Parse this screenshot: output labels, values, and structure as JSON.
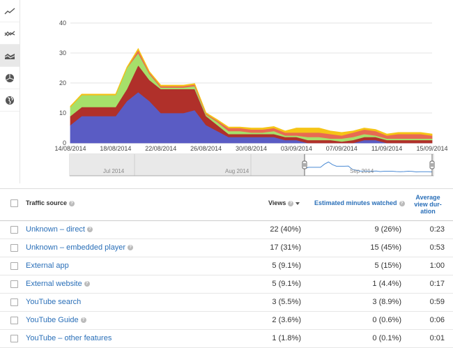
{
  "toolbar": {
    "buttons": [
      {
        "icon": "line-chart-icon"
      },
      {
        "icon": "multi-line-chart-icon"
      },
      {
        "icon": "stacked-area-chart-icon"
      },
      {
        "icon": "pie-chart-icon"
      },
      {
        "icon": "globe-map-icon"
      }
    ],
    "active_index": 2
  },
  "chart_data": {
    "type": "area",
    "stacked": true,
    "x": [
      "14/08/2014",
      "15/08/2014",
      "16/08/2014",
      "17/08/2014",
      "18/08/2014",
      "19/08/2014",
      "20/08/2014",
      "21/08/2014",
      "22/08/2014",
      "23/08/2014",
      "24/08/2014",
      "25/08/2014",
      "26/08/2014",
      "27/08/2014",
      "28/08/2014",
      "29/08/2014",
      "30/08/2014",
      "31/08/2014",
      "01/09/2014",
      "02/09/2014",
      "03/09/2014",
      "04/09/2014",
      "05/09/2014",
      "06/09/2014",
      "07/09/2014",
      "08/09/2014",
      "09/09/2014",
      "10/09/2014",
      "11/09/2014",
      "12/09/2014",
      "13/09/2014",
      "14/09/2014",
      "15/09/2014"
    ],
    "x_tick_labels": [
      "14/08/2014",
      "18/08/2014",
      "22/08/2014",
      "26/08/2014",
      "30/08/2014",
      "03/09/2014",
      "07/09/2014",
      "11/09/2014",
      "15/09/2014"
    ],
    "y_tick_labels": [
      "0",
      "10",
      "20",
      "30",
      "40"
    ],
    "ylim": [
      0,
      40
    ],
    "colors": [
      "#5a5cc4",
      "#b0302a",
      "#a6e06a",
      "#e86a52",
      "#f5c416"
    ],
    "series": [
      {
        "values": [
          6,
          9,
          9,
          9,
          9,
          14,
          17,
          14,
          10,
          10,
          10,
          11,
          6,
          4,
          2,
          2,
          2,
          2,
          2,
          1,
          1,
          0,
          0,
          0,
          0,
          0,
          1,
          1,
          0,
          0,
          0,
          0,
          0
        ]
      },
      {
        "values": [
          3,
          3,
          3,
          3,
          3,
          4,
          9,
          7,
          8,
          8,
          8,
          7,
          3,
          2,
          1,
          1,
          1,
          1,
          1,
          1,
          1,
          1,
          1,
          1,
          0.5,
          1,
          1,
          1,
          1,
          1,
          1,
          1,
          1
        ]
      },
      {
        "values": [
          3,
          4,
          4,
          4,
          4,
          7,
          4,
          2,
          0.5,
          0.5,
          0.5,
          1,
          0.5,
          1,
          1,
          1,
          0.5,
          0.5,
          1,
          0.5,
          0.5,
          1,
          1,
          0.5,
          1,
          1,
          1,
          0.5,
          0.5,
          0.5,
          0.5,
          0.5,
          0.5
        ]
      },
      {
        "values": [
          0,
          0,
          0,
          0,
          0,
          0,
          1,
          0.5,
          0.5,
          0.5,
          0.5,
          0.5,
          0.3,
          0.5,
          1,
          1,
          1,
          1,
          1,
          1,
          1,
          1.5,
          1.5,
          1.5,
          1,
          1.5,
          1.5,
          1.5,
          1,
          1.5,
          1.5,
          1.5,
          1
        ]
      },
      {
        "values": [
          0.3,
          0.3,
          0.3,
          0.3,
          0.3,
          0.3,
          0.5,
          0.3,
          0.3,
          0.3,
          0.3,
          0.3,
          0.3,
          0.3,
          0.3,
          0.3,
          0.5,
          0.5,
          0.5,
          0.5,
          1.5,
          1.5,
          1.5,
          1,
          1,
          0.5,
          0.5,
          0.5,
          0.5,
          0.5,
          0.5,
          0.5,
          0.5
        ]
      }
    ],
    "navigator": {
      "month_labels": [
        "Jul 2014",
        "Aug 2014",
        "Sep 2014"
      ],
      "selected_range": [
        "14/08/2014",
        "15/09/2014"
      ]
    }
  },
  "table": {
    "headers": {
      "source": "Traffic source",
      "views": "Views",
      "minutes": "Estimated minutes watched",
      "duration": "Average view duration",
      "duration_lines": [
        "Average",
        "view dur-",
        "ation"
      ]
    },
    "rows": [
      {
        "source": "Unknown – direct",
        "help": true,
        "views": "22 (40%)",
        "minutes": "9 (26%)",
        "duration": "0:23"
      },
      {
        "source": "Unknown – embedded player",
        "help": true,
        "views": "17 (31%)",
        "minutes": "15 (45%)",
        "duration": "0:53"
      },
      {
        "source": "External app",
        "help": false,
        "views": "5 (9.1%)",
        "minutes": "5 (15%)",
        "duration": "1:00"
      },
      {
        "source": "External website",
        "help": true,
        "views": "5 (9.1%)",
        "minutes": "1 (4.4%)",
        "duration": "0:17"
      },
      {
        "source": "YouTube search",
        "help": false,
        "views": "3 (5.5%)",
        "minutes": "3 (8.9%)",
        "duration": "0:59"
      },
      {
        "source": "YouTube Guide",
        "help": true,
        "views": "2 (3.6%)",
        "minutes": "0 (0.6%)",
        "duration": "0:06"
      },
      {
        "source": "YouTube – other features",
        "help": false,
        "views": "1 (1.8%)",
        "minutes": "0 (0.1%)",
        "duration": "0:01"
      }
    ]
  }
}
